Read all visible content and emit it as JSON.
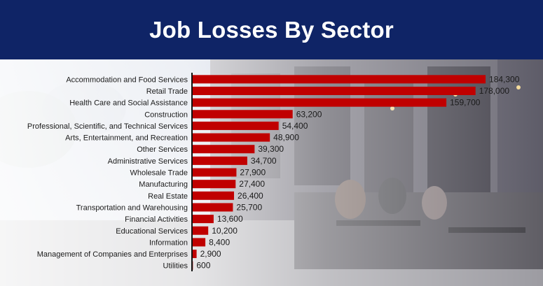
{
  "header": {
    "title": "Job Losses By Sector"
  },
  "colors": {
    "header_bg": "#0f2466",
    "bar": "#c00000",
    "text": "#1a1a1a",
    "axis": "#111111"
  },
  "chart_data": {
    "type": "bar",
    "orientation": "horizontal",
    "title": "Job Losses By Sector",
    "xlabel": "",
    "ylabel": "",
    "grid": false,
    "xlim": [
      0,
      190000
    ],
    "categories": [
      "Accommodation and Food Services",
      "Retail Trade",
      "Health Care and Social Assistance",
      "Construction",
      "Professional, Scientific, and Technical Services",
      "Arts, Entertainment, and Recreation",
      "Other Services",
      "Administrative Services",
      "Wholesale Trade",
      "Manufacturing",
      "Real Estate",
      "Transportation and Warehousing",
      "Financial Activities",
      "Educational Services",
      "Information",
      "Management of Companies and Enterprises",
      "Utilities"
    ],
    "values": [
      184300,
      178000,
      159700,
      63200,
      54400,
      48900,
      39300,
      34700,
      27900,
      27400,
      26400,
      25700,
      13600,
      10200,
      8400,
      2900,
      600
    ],
    "data_labels": [
      "184,300",
      "178,000",
      "159,700",
      "63,200",
      "54,400",
      "48,900",
      "39,300",
      "34,700",
      "27,900",
      "27,400",
      "26,400",
      "25,700",
      "13,600",
      "10,200",
      "8,400",
      "2,900",
      "600"
    ]
  }
}
